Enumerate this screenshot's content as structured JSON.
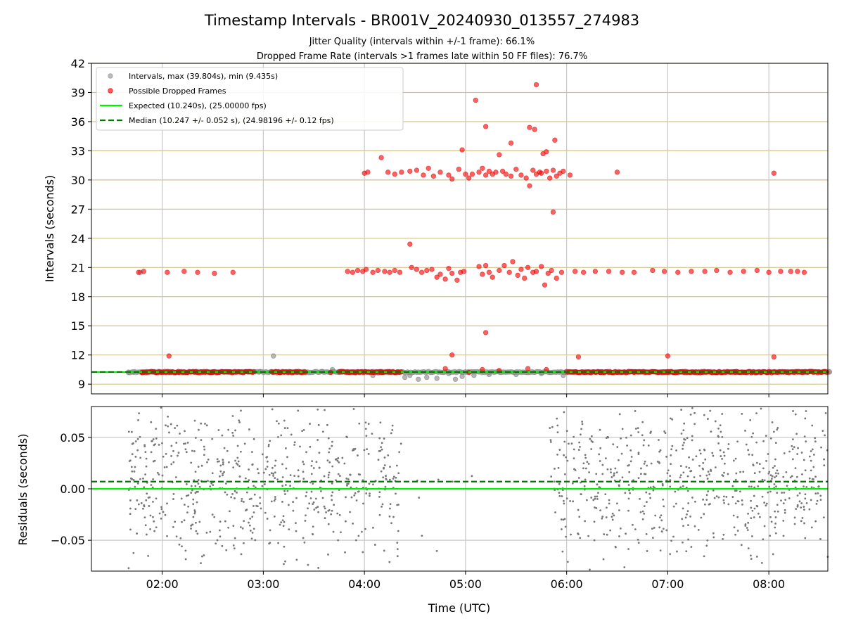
{
  "chart_data": [
    {
      "type": "scatter",
      "title": "Timestamp Intervals - BR001V_20240930_013557_274983",
      "subtitle_lines": [
        "Jitter Quality (intervals within +/-1 frame): 66.1%",
        "Dropped Frame Rate (intervals >1 frames late within 50 FF files): 76.7%"
      ],
      "ylabel": "Intervals (seconds)",
      "xlabel": "",
      "x_unit": "time (UTC, HH:MM)",
      "xlim": [
        "01:18",
        "08:35"
      ],
      "ylim": [
        8,
        42
      ],
      "yticks": [
        9,
        12,
        15,
        18,
        21,
        24,
        27,
        30,
        33,
        36,
        39,
        42
      ],
      "grid": {
        "vertical": true,
        "horizontal": true,
        "horizontal_color": "#d4c28c"
      },
      "legend_position": "top-left",
      "legend": [
        {
          "label": "Intervals, max (39.804s), min (9.435s)",
          "marker": "circle",
          "color": "#999999"
        },
        {
          "label": "Possible Dropped Frames",
          "marker": "circle",
          "color": "#ff0000"
        },
        {
          "label": "Expected (10.240s), (25.00000 fps)",
          "marker": "solid-line",
          "color": "#00ee00"
        },
        {
          "label": "Median (10.247 +/- 0.052 s), (24.98196 +/- 0.12 fps)",
          "marker": "dashed-line",
          "color": "#007700"
        }
      ],
      "reference_lines": {
        "expected": 10.24,
        "median": 10.247
      },
      "series": [
        {
          "name": "Intervals, max (39.804s), min (9.435s)",
          "color": "#999999",
          "points": [
            [
              "01:40",
              10.24
            ],
            [
              "01:43",
              10.22
            ],
            [
              "01:47",
              20.5
            ],
            [
              "02:52",
              10.25
            ],
            [
              "02:58",
              10.3
            ],
            [
              "03:06",
              11.9
            ],
            [
              "03:20",
              10.2
            ],
            [
              "03:35",
              10.3
            ],
            [
              "03:41",
              10.5
            ],
            [
              "03:45",
              10.2
            ],
            [
              "04:05",
              10.3
            ],
            [
              "04:20",
              10.2
            ],
            [
              "04:05",
              9.9
            ],
            [
              "04:24",
              9.7
            ],
            [
              "04:27",
              9.9
            ],
            [
              "04:32",
              9.5
            ],
            [
              "04:37",
              9.7
            ],
            [
              "04:43",
              9.6
            ],
            [
              "04:50",
              10.1
            ],
            [
              "04:54",
              9.5
            ],
            [
              "04:58",
              9.8
            ],
            [
              "05:05",
              9.9
            ],
            [
              "05:14",
              10.0
            ],
            [
              "05:30",
              10.0
            ],
            [
              "05:45",
              10.1
            ],
            [
              "05:58",
              9.9
            ],
            [
              "08:36",
              10.25
            ]
          ]
        },
        {
          "name": "Possible Dropped Frames",
          "color": "#ff0000",
          "points": [
            [
              "01:46",
              20.5
            ],
            [
              "01:49",
              20.6
            ],
            [
              "02:03",
              20.5
            ],
            [
              "02:13",
              20.6
            ],
            [
              "02:21",
              20.5
            ],
            [
              "02:31",
              20.4
            ],
            [
              "02:42",
              20.5
            ],
            [
              "02:04",
              11.9
            ],
            [
              "06:07",
              11.8
            ],
            [
              "07:00",
              11.9
            ],
            [
              "08:03",
              11.8
            ],
            [
              "03:50",
              20.6
            ],
            [
              "03:53",
              20.5
            ],
            [
              "03:56",
              20.7
            ],
            [
              "03:59",
              20.6
            ],
            [
              "04:01",
              20.8
            ],
            [
              "04:05",
              20.5
            ],
            [
              "04:08",
              20.7
            ],
            [
              "04:12",
              20.6
            ],
            [
              "04:15",
              20.5
            ],
            [
              "04:18",
              20.7
            ],
            [
              "04:21",
              20.5
            ],
            [
              "04:27",
              23.4
            ],
            [
              "04:28",
              21.0
            ],
            [
              "04:31",
              20.8
            ],
            [
              "04:34",
              20.5
            ],
            [
              "04:37",
              20.7
            ],
            [
              "04:40",
              20.8
            ],
            [
              "04:43",
              20.0
            ],
            [
              "04:45",
              20.3
            ],
            [
              "04:48",
              19.8
            ],
            [
              "04:50",
              20.9
            ],
            [
              "04:52",
              20.4
            ],
            [
              "04:55",
              19.7
            ],
            [
              "04:57",
              20.5
            ],
            [
              "04:59",
              20.6
            ],
            [
              "05:08",
              21.1
            ],
            [
              "05:10",
              20.3
            ],
            [
              "05:12",
              21.2
            ],
            [
              "05:14",
              20.5
            ],
            [
              "05:16",
              20.0
            ],
            [
              "05:20",
              20.7
            ],
            [
              "05:23",
              21.2
            ],
            [
              "05:26",
              20.5
            ],
            [
              "05:28",
              21.6
            ],
            [
              "05:31",
              20.2
            ],
            [
              "05:33",
              20.8
            ],
            [
              "05:35",
              19.9
            ],
            [
              "05:37",
              21.0
            ],
            [
              "05:40",
              20.5
            ],
            [
              "05:42",
              20.6
            ],
            [
              "05:45",
              21.1
            ],
            [
              "05:47",
              19.2
            ],
            [
              "05:49",
              20.4
            ],
            [
              "05:51",
              20.7
            ],
            [
              "05:54",
              19.9
            ],
            [
              "05:57",
              20.5
            ],
            [
              "06:05",
              20.6
            ],
            [
              "06:10",
              20.5
            ],
            [
              "06:17",
              20.6
            ],
            [
              "06:25",
              20.6
            ],
            [
              "06:33",
              20.5
            ],
            [
              "06:40",
              20.5
            ],
            [
              "06:51",
              20.7
            ],
            [
              "06:58",
              20.6
            ],
            [
              "07:06",
              20.5
            ],
            [
              "07:14",
              20.6
            ],
            [
              "07:22",
              20.6
            ],
            [
              "07:29",
              20.7
            ],
            [
              "07:37",
              20.5
            ],
            [
              "07:45",
              20.6
            ],
            [
              "07:53",
              20.7
            ],
            [
              "08:00",
              20.5
            ],
            [
              "08:07",
              20.6
            ],
            [
              "08:13",
              20.6
            ],
            [
              "08:17",
              20.6
            ],
            [
              "08:21",
              20.5
            ],
            [
              "04:00",
              30.7
            ],
            [
              "04:02",
              30.8
            ],
            [
              "04:10",
              32.3
            ],
            [
              "04:14",
              30.8
            ],
            [
              "04:18",
              30.6
            ],
            [
              "04:22",
              30.8
            ],
            [
              "04:27",
              30.9
            ],
            [
              "04:31",
              31.0
            ],
            [
              "04:35",
              30.5
            ],
            [
              "04:38",
              31.2
            ],
            [
              "04:41",
              30.4
            ],
            [
              "04:45",
              30.8
            ],
            [
              "04:50",
              30.5
            ],
            [
              "04:52",
              30.1
            ],
            [
              "04:56",
              31.1
            ],
            [
              "04:58",
              33.1
            ],
            [
              "05:00",
              30.6
            ],
            [
              "05:02",
              30.2
            ],
            [
              "05:04",
              30.6
            ],
            [
              "05:06",
              38.2
            ],
            [
              "05:08",
              30.8
            ],
            [
              "05:10",
              31.2
            ],
            [
              "05:12",
              30.5
            ],
            [
              "05:14",
              30.9
            ],
            [
              "05:16",
              30.6
            ],
            [
              "05:18",
              30.8
            ],
            [
              "05:20",
              32.6
            ],
            [
              "05:22",
              30.9
            ],
            [
              "05:24",
              30.6
            ],
            [
              "05:27",
              30.4
            ],
            [
              "05:30",
              31.1
            ],
            [
              "05:33",
              30.5
            ],
            [
              "05:36",
              30.2
            ],
            [
              "05:38",
              29.4
            ],
            [
              "05:40",
              31.0
            ],
            [
              "05:42",
              30.6
            ],
            [
              "05:44",
              30.8
            ],
            [
              "05:46",
              32.7
            ],
            [
              "05:48",
              30.9
            ],
            [
              "05:50",
              30.2
            ],
            [
              "05:52",
              31.0
            ],
            [
              "05:54",
              30.4
            ],
            [
              "05:56",
              30.7
            ],
            [
              "05:58",
              30.9
            ],
            [
              "06:02",
              30.5
            ],
            [
              "05:12",
              35.5
            ],
            [
              "05:27",
              33.8
            ],
            [
              "05:38",
              35.4
            ],
            [
              "05:41",
              35.2
            ],
            [
              "05:48",
              32.9
            ],
            [
              "05:52",
              26.7
            ],
            [
              "05:53",
              34.1
            ],
            [
              "05:42",
              39.8
            ],
            [
              "05:45",
              30.7
            ],
            [
              "06:30",
              30.8
            ],
            [
              "08:03",
              30.7
            ],
            [
              "05:12",
              14.3
            ],
            [
              "04:52",
              12.0
            ],
            [
              "01:48",
              10.2
            ],
            [
              "02:00",
              10.25
            ],
            [
              "02:10",
              10.2
            ],
            [
              "02:20",
              10.3
            ],
            [
              "02:30",
              10.2
            ],
            [
              "02:40",
              10.25
            ],
            [
              "03:10",
              10.2
            ],
            [
              "03:25",
              10.25
            ],
            [
              "03:40",
              10.2
            ],
            [
              "03:55",
              10.25
            ],
            [
              "04:10",
              10.2
            ],
            [
              "04:15",
              10.3
            ],
            [
              "04:48",
              10.6
            ],
            [
              "05:02",
              10.2
            ],
            [
              "05:10",
              10.5
            ],
            [
              "05:20",
              10.4
            ],
            [
              "05:37",
              10.6
            ],
            [
              "05:48",
              10.5
            ],
            [
              "06:05",
              10.25
            ],
            [
              "06:20",
              10.2
            ],
            [
              "06:40",
              10.25
            ],
            [
              "07:00",
              10.2
            ],
            [
              "07:20",
              10.25
            ],
            [
              "07:40",
              10.2
            ],
            [
              "08:00",
              10.25
            ],
            [
              "08:20",
              10.2
            ]
          ],
          "dense_bands": [
            {
              "x_start": "01:48",
              "x_end": "02:55",
              "y": 10.24
            },
            {
              "x_start": "03:05",
              "x_end": "03:25",
              "y": 10.24
            },
            {
              "x_start": "03:45",
              "x_end": "04:22",
              "y": 10.24
            },
            {
              "x_start": "06:00",
              "x_end": "08:35",
              "y": 10.24
            }
          ]
        }
      ]
    },
    {
      "type": "scatter",
      "xlabel": "Time (UTC)",
      "ylabel": "Residuals (seconds)",
      "xlim": [
        "01:18",
        "08:35"
      ],
      "ylim": [
        -0.08,
        0.08
      ],
      "yticks": [
        -0.05,
        0.0,
        0.05
      ],
      "ytick_labels": [
        "−0.05",
        "0.00",
        "0.05"
      ],
      "xticks": [
        "02:00",
        "03:00",
        "04:00",
        "05:00",
        "06:00",
        "07:00",
        "08:00"
      ],
      "grid": true,
      "reference_lines": {
        "expected": 0.0,
        "median": 0.007
      },
      "series": [
        {
          "name": "",
          "color": "#777777",
          "point_clouds": [
            {
              "x_start": "01:40",
              "x_end": "04:22",
              "y_min": -0.08,
              "y_max": 0.08,
              "count": 620
            },
            {
              "x_start": "04:25",
              "x_end": "05:12",
              "y_min": -0.08,
              "y_max": 0.08,
              "count": 8
            },
            {
              "x_start": "05:50",
              "x_end": "08:35",
              "y_min": -0.08,
              "y_max": 0.08,
              "count": 640
            }
          ]
        }
      ]
    }
  ]
}
